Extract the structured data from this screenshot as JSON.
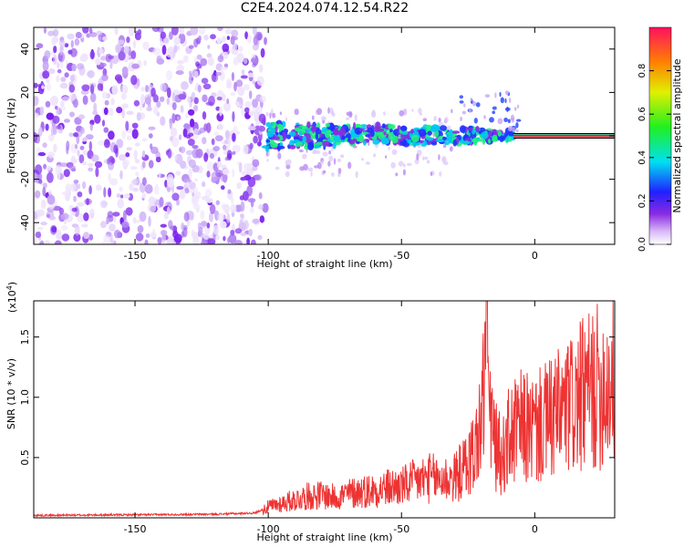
{
  "title": "C2E4.2024.074.12.54.R22",
  "colors": {
    "snr_line": "#ee3333",
    "spectrogram_low": "#9a40f0",
    "spectrogram_mid": "#28e890",
    "spectrogram_high": "#ff2020"
  },
  "chart_data": [
    {
      "type": "heatmap",
      "title": "",
      "xlabel": "Height of straight line (km)",
      "ylabel": "Frequency (Hz)",
      "xlim": [
        -188,
        30
      ],
      "ylim": [
        -50,
        50
      ],
      "xticks": [
        -150,
        -100,
        -50,
        0
      ],
      "yticks": [
        -40,
        -20,
        0,
        20,
        40
      ],
      "noise_region_x": [
        -188,
        -101
      ],
      "signal_track": [
        {
          "x": -101,
          "freq": 0,
          "spread": 6
        },
        {
          "x": -80,
          "freq": 0,
          "spread": 5
        },
        {
          "x": -60,
          "freq": 1,
          "spread": 4
        },
        {
          "x": -40,
          "freq": 0,
          "spread": 4
        },
        {
          "x": -20,
          "freq": 0,
          "spread": 3
        },
        {
          "x": -8,
          "freq": 0,
          "spread": 2
        },
        {
          "x": 0,
          "freq": 0,
          "spread": 1
        },
        {
          "x": 30,
          "freq": 0,
          "spread": 1
        }
      ],
      "colorbar": {
        "label": "Normalized spectral amplitude",
        "range": [
          0,
          1
        ],
        "ticks": [
          "0.0",
          "0.2",
          "0.4",
          "0.6",
          "0.8"
        ]
      }
    },
    {
      "type": "line",
      "title": "",
      "xlabel": "Height of straight line (km)",
      "ylabel": "SNR (10 * v/v)",
      "multiplier": "(x10",
      "multiplier_exp": "4",
      "multiplier_end": ")",
      "xlim": [
        -188,
        30
      ],
      "ylim": [
        0,
        18000
      ],
      "xticks": [
        -150,
        -100,
        -50,
        0
      ],
      "yticks": [
        5000,
        10000,
        15000
      ],
      "ytick_labels": [
        "0.5",
        "1.0",
        "1.5"
      ],
      "series": [
        {
          "x": [
            -188,
            -150,
            -120,
            -105,
            -100,
            -95,
            -90,
            -85,
            -80,
            -75,
            -70,
            -65,
            -60,
            -55,
            -50,
            -45,
            -40,
            -35,
            -30,
            -25,
            -22,
            -20,
            -19,
            -18,
            -17,
            -15,
            -12,
            -10,
            -8,
            -5,
            0,
            5,
            10,
            15,
            20,
            25,
            30
          ],
          "y": [
            200,
            250,
            300,
            400,
            900,
            1200,
            1500,
            1800,
            1900,
            1700,
            2000,
            2200,
            2300,
            2500,
            2600,
            3000,
            3300,
            3200,
            3300,
            4500,
            6000,
            8000,
            11000,
            18000,
            9000,
            6000,
            5000,
            6500,
            7000,
            7500,
            7300,
            8000,
            8700,
            9500,
            10400,
            11000,
            11300
          ]
        }
      ]
    }
  ]
}
